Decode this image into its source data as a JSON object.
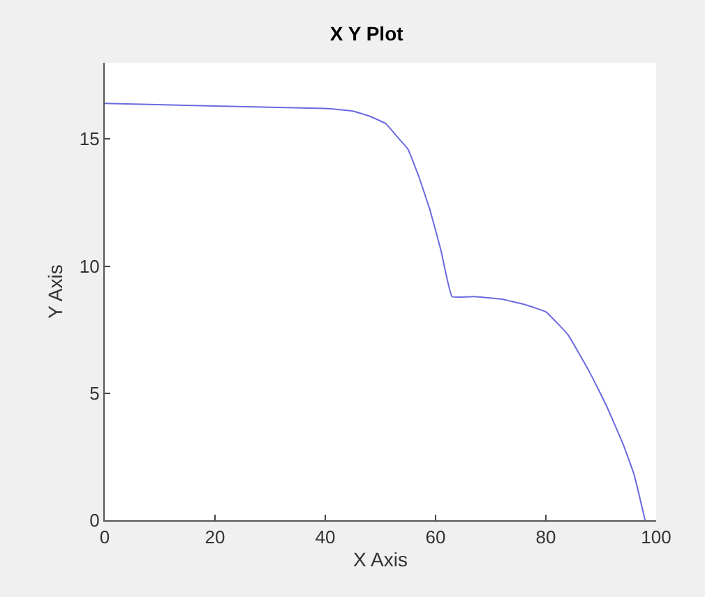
{
  "chart_data": {
    "type": "line",
    "title": "X Y Plot",
    "xlabel": "X Axis",
    "ylabel": "Y Axis",
    "x": [
      0,
      20,
      40,
      45,
      48,
      51,
      53,
      55,
      57,
      59,
      61,
      63,
      67,
      72,
      76,
      80,
      84,
      88,
      91,
      94,
      96,
      98
    ],
    "series": [
      {
        "color": "#6a6ae0",
        "values": [
          16.4,
          16.3,
          16.2,
          16.1,
          15.9,
          15.6,
          15.1,
          14.6,
          13.5,
          12.2,
          10.6,
          8.8,
          8.8,
          8.7,
          8.5,
          8.2,
          7.3,
          5.8,
          4.5,
          3.0,
          1.8,
          0
        ]
      }
    ],
    "xlim": [
      0,
      100
    ],
    "ylim": [
      0,
      18
    ],
    "xticks": [
      0,
      20,
      40,
      60,
      80,
      100
    ],
    "yticks": [
      0,
      5,
      10,
      15
    ],
    "marker": "none",
    "line_style": "solid"
  }
}
